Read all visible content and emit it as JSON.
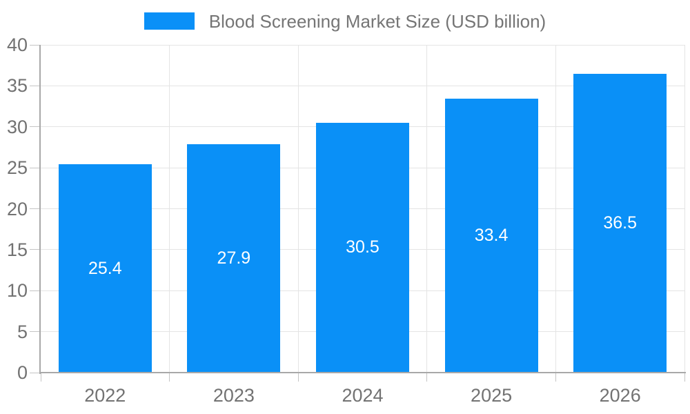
{
  "chart_data": {
    "type": "bar",
    "title": "Blood Screening Market Size (USD billion)",
    "legend_label": "Blood Screening Market Size (USD billion)",
    "legend_position": "top-center",
    "categories": [
      "2022",
      "2023",
      "2024",
      "2025",
      "2026"
    ],
    "values": [
      25.4,
      27.9,
      30.5,
      33.4,
      36.5
    ],
    "value_labels": [
      "25.4",
      "27.9",
      "30.5",
      "33.4",
      "36.5"
    ],
    "xlabel": "",
    "ylabel": "",
    "ylim": [
      0,
      40
    ],
    "yticks": [
      0,
      5,
      10,
      15,
      20,
      25,
      30,
      35,
      40
    ],
    "grid": true,
    "value_labels_position": "center-inside-bar"
  },
  "colors": {
    "bar": "#0a90f7",
    "grid": "#e4e4e4",
    "axis": "#a8a8a8",
    "tick": "#c4c4c4",
    "axis_text": "#727272",
    "legend_text": "#757575",
    "value_text": "#ffffff",
    "background": "#ffffff"
  }
}
